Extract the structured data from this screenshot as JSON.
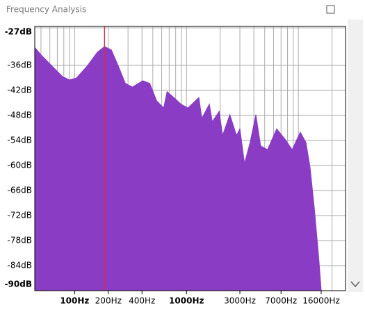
{
  "window_title": "Frequency Analysis",
  "chart_data": {
    "type": "area",
    "color": "#8a3cc4",
    "cursor_color": "#d0304a",
    "cursor_x": 185,
    "x_log": true,
    "grid": true,
    "xlim": [
      44,
      26400
    ],
    "ylim": [
      -90,
      -27
    ],
    "xticks": [
      {
        "value": 100,
        "label": "100Hz"
      },
      {
        "value": 200,
        "label": "200Hz"
      },
      {
        "value": 400,
        "label": "400Hz"
      },
      {
        "value": 1000,
        "label": "1000Hz"
      },
      {
        "value": 3000,
        "label": "3000Hz"
      },
      {
        "value": 7000,
        "label": "7000Hz"
      },
      {
        "value": 16000,
        "label": "16000Hz"
      }
    ],
    "xminor": [
      50,
      60,
      70,
      80,
      90,
      100,
      200,
      300,
      400,
      500,
      600,
      700,
      800,
      900,
      1000,
      2000,
      3000,
      4000,
      5000,
      6000,
      7000,
      8000,
      9000,
      10000,
      20000
    ],
    "yticks": [
      {
        "value": -27,
        "label": "-27dB"
      },
      {
        "value": -36,
        "label": "-36dB"
      },
      {
        "value": -42,
        "label": "-42dB"
      },
      {
        "value": -48,
        "label": "-48dB"
      },
      {
        "value": -54,
        "label": "-54dB"
      },
      {
        "value": -60,
        "label": "-60dB"
      },
      {
        "value": -66,
        "label": "-66dB"
      },
      {
        "value": -72,
        "label": "-72dB"
      },
      {
        "value": -78,
        "label": "-78dB"
      },
      {
        "value": -84,
        "label": "-84dB"
      },
      {
        "value": -90,
        "label": "-90dB"
      }
    ],
    "x": [
      44,
      51,
      63,
      78,
      90,
      104,
      129,
      160,
      185,
      213,
      246,
      284,
      328,
      406,
      469,
      541,
      625,
      670,
      770,
      892,
      1030,
      1290,
      1370,
      1600,
      1700,
      1960,
      2100,
      2440,
      2800,
      3000,
      3300,
      3700,
      4170,
      4600,
      5300,
      6400,
      7600,
      8800,
      10400,
      11700,
      12700,
      13900,
      15200,
      16000
    ],
    "values": [
      -31.7,
      -33.7,
      -36.2,
      -38.7,
      -39.5,
      -39,
      -36.2,
      -32.8,
      -31.5,
      -32.3,
      -36.2,
      -40.3,
      -41.2,
      -39.7,
      -40.3,
      -44.5,
      -46.2,
      -42.3,
      -43.7,
      -45.3,
      -46.2,
      -43.7,
      -48.7,
      -45.3,
      -49.5,
      -47,
      -52.8,
      -47.8,
      -52.8,
      -51.2,
      -59.5,
      -54.5,
      -47.8,
      -55.3,
      -56.2,
      -51.2,
      -53.7,
      -56.2,
      -52,
      -54.5,
      -60.3,
      -70.3,
      -82,
      -90
    ]
  }
}
